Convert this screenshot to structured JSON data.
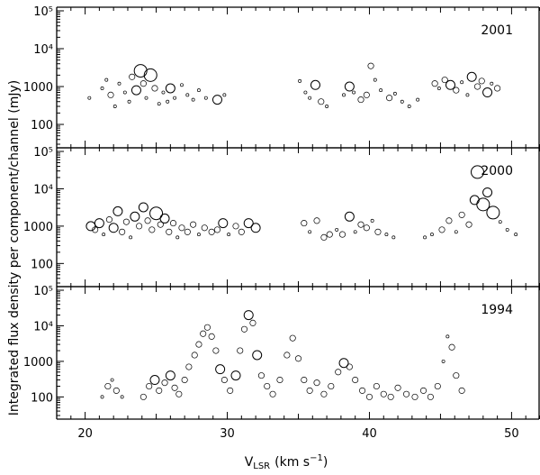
{
  "chart_data": {
    "type": "scatter",
    "ylabel": "Integrated flux density per component/channel (mJy)",
    "xlabel_main": "V",
    "xlabel_sub": "LSR",
    "xlabel_units": "(km s",
    "xlabel_units_sup": "−1",
    "xlabel_units_close": ")",
    "x_ticks": [
      "20",
      "30",
      "40",
      "50"
    ],
    "xlim": [
      18,
      52
    ],
    "ylim": [
      30,
      100000
    ],
    "y_scale": "log",
    "y_ticks": [
      "100",
      "1000",
      "10⁴",
      "10⁵"
    ],
    "panels": [
      {
        "label": "2001",
        "points": [
          [
            20.3,
            500,
            1
          ],
          [
            21.2,
            900,
            1
          ],
          [
            21.5,
            1500,
            1
          ],
          [
            21.8,
            600,
            2
          ],
          [
            22.1,
            300,
            1
          ],
          [
            22.4,
            1200,
            1
          ],
          [
            22.8,
            700,
            1
          ],
          [
            23.1,
            400,
            1
          ],
          [
            23.3,
            1800,
            2
          ],
          [
            23.6,
            800,
            3
          ],
          [
            23.9,
            2600,
            4
          ],
          [
            24.1,
            1200,
            2
          ],
          [
            24.3,
            500,
            1
          ],
          [
            24.6,
            2000,
            4
          ],
          [
            24.9,
            900,
            2
          ],
          [
            25.2,
            350,
            1
          ],
          [
            25.5,
            700,
            1
          ],
          [
            25.8,
            400,
            1
          ],
          [
            26.0,
            900,
            3
          ],
          [
            26.3,
            500,
            1
          ],
          [
            26.8,
            1100,
            1
          ],
          [
            27.2,
            600,
            1
          ],
          [
            27.6,
            450,
            1
          ],
          [
            28.0,
            800,
            1
          ],
          [
            28.5,
            500,
            1
          ],
          [
            29.3,
            450,
            3
          ],
          [
            29.8,
            600,
            1
          ],
          [
            35.1,
            1400,
            1
          ],
          [
            35.5,
            700,
            1
          ],
          [
            35.8,
            500,
            1
          ],
          [
            36.2,
            1100,
            3
          ],
          [
            36.6,
            400,
            2
          ],
          [
            37.0,
            300,
            1
          ],
          [
            38.2,
            600,
            1
          ],
          [
            38.6,
            1000,
            3
          ],
          [
            38.9,
            700,
            1
          ],
          [
            39.4,
            450,
            2
          ],
          [
            39.8,
            600,
            2
          ],
          [
            40.1,
            3500,
            2
          ],
          [
            40.4,
            1500,
            1
          ],
          [
            40.8,
            800,
            1
          ],
          [
            41.4,
            500,
            2
          ],
          [
            41.8,
            650,
            1
          ],
          [
            42.3,
            400,
            1
          ],
          [
            42.8,
            300,
            1
          ],
          [
            43.4,
            450,
            1
          ],
          [
            44.6,
            1200,
            2
          ],
          [
            44.9,
            900,
            1
          ],
          [
            45.3,
            1500,
            2
          ],
          [
            45.7,
            1100,
            3
          ],
          [
            46.1,
            800,
            2
          ],
          [
            46.5,
            1300,
            1
          ],
          [
            46.9,
            600,
            1
          ],
          [
            47.2,
            1800,
            3
          ],
          [
            47.6,
            1000,
            2
          ],
          [
            47.9,
            1400,
            2
          ],
          [
            48.3,
            700,
            3
          ],
          [
            48.6,
            1200,
            1
          ],
          [
            49.0,
            900,
            2
          ]
        ]
      },
      {
        "label": "2000",
        "points": [
          [
            20.4,
            1000,
            3
          ],
          [
            20.7,
            800,
            2
          ],
          [
            21.0,
            1200,
            3
          ],
          [
            21.3,
            600,
            1
          ],
          [
            21.7,
            1500,
            2
          ],
          [
            22.0,
            900,
            3
          ],
          [
            22.3,
            2500,
            3
          ],
          [
            22.6,
            700,
            2
          ],
          [
            22.9,
            1300,
            2
          ],
          [
            23.2,
            500,
            1
          ],
          [
            23.5,
            1800,
            3
          ],
          [
            23.8,
            1000,
            2
          ],
          [
            24.1,
            3200,
            3
          ],
          [
            24.4,
            1400,
            2
          ],
          [
            24.7,
            800,
            2
          ],
          [
            25.0,
            2200,
            4
          ],
          [
            25.3,
            1100,
            2
          ],
          [
            25.6,
            1600,
            3
          ],
          [
            25.9,
            700,
            2
          ],
          [
            26.2,
            1200,
            2
          ],
          [
            26.5,
            500,
            1
          ],
          [
            26.8,
            900,
            2
          ],
          [
            27.2,
            700,
            2
          ],
          [
            27.6,
            1100,
            2
          ],
          [
            28.0,
            600,
            1
          ],
          [
            28.4,
            900,
            2
          ],
          [
            28.9,
            700,
            2
          ],
          [
            29.3,
            800,
            2
          ],
          [
            29.7,
            1200,
            3
          ],
          [
            30.1,
            600,
            1
          ],
          [
            30.6,
            1000,
            2
          ],
          [
            31.0,
            700,
            2
          ],
          [
            31.5,
            1200,
            3
          ],
          [
            32.0,
            900,
            3
          ],
          [
            35.4,
            1200,
            2
          ],
          [
            35.8,
            700,
            1
          ],
          [
            36.3,
            1400,
            2
          ],
          [
            36.8,
            500,
            2
          ],
          [
            37.2,
            600,
            2
          ],
          [
            37.7,
            800,
            1
          ],
          [
            38.1,
            600,
            2
          ],
          [
            38.6,
            1800,
            3
          ],
          [
            39.0,
            700,
            1
          ],
          [
            39.4,
            1100,
            2
          ],
          [
            39.8,
            900,
            2
          ],
          [
            40.2,
            1400,
            1
          ],
          [
            40.6,
            700,
            2
          ],
          [
            41.2,
            600,
            1
          ],
          [
            41.7,
            500,
            1
          ],
          [
            43.9,
            500,
            1
          ],
          [
            44.4,
            600,
            1
          ],
          [
            45.1,
            800,
            2
          ],
          [
            45.6,
            1400,
            2
          ],
          [
            46.1,
            700,
            1
          ],
          [
            46.5,
            2000,
            2
          ],
          [
            47.0,
            1100,
            2
          ],
          [
            47.4,
            5000,
            3
          ],
          [
            47.6,
            28000,
            4
          ],
          [
            48.0,
            3800,
            4
          ],
          [
            48.3,
            8000,
            3
          ],
          [
            48.7,
            2300,
            4
          ],
          [
            49.2,
            1300,
            1
          ],
          [
            49.7,
            800,
            1
          ],
          [
            50.3,
            600,
            1
          ]
        ]
      },
      {
        "label": "1994",
        "points": [
          [
            21.2,
            100,
            1
          ],
          [
            21.6,
            200,
            2
          ],
          [
            21.9,
            300,
            1
          ],
          [
            22.2,
            150,
            2
          ],
          [
            22.6,
            100,
            1
          ],
          [
            24.1,
            100,
            2
          ],
          [
            24.5,
            200,
            2
          ],
          [
            24.9,
            300,
            3
          ],
          [
            25.2,
            150,
            2
          ],
          [
            25.6,
            250,
            2
          ],
          [
            26.0,
            400,
            3
          ],
          [
            26.3,
            180,
            2
          ],
          [
            26.6,
            120,
            2
          ],
          [
            27.0,
            300,
            2
          ],
          [
            27.3,
            700,
            2
          ],
          [
            27.7,
            1500,
            2
          ],
          [
            28.0,
            3000,
            2
          ],
          [
            28.3,
            6000,
            2
          ],
          [
            28.6,
            9000,
            2
          ],
          [
            28.9,
            5000,
            2
          ],
          [
            29.2,
            2000,
            2
          ],
          [
            29.5,
            600,
            3
          ],
          [
            29.8,
            300,
            2
          ],
          [
            30.2,
            150,
            2
          ],
          [
            30.6,
            400,
            3
          ],
          [
            30.9,
            2000,
            2
          ],
          [
            31.2,
            8000,
            2
          ],
          [
            31.5,
            20000,
            3
          ],
          [
            31.8,
            12000,
            2
          ],
          [
            32.1,
            1500,
            3
          ],
          [
            32.4,
            400,
            2
          ],
          [
            32.8,
            200,
            2
          ],
          [
            33.2,
            120,
            2
          ],
          [
            33.7,
            300,
            2
          ],
          [
            34.2,
            1500,
            2
          ],
          [
            34.6,
            4500,
            2
          ],
          [
            35.0,
            1200,
            2
          ],
          [
            35.4,
            300,
            2
          ],
          [
            35.8,
            150,
            2
          ],
          [
            36.3,
            250,
            2
          ],
          [
            36.8,
            120,
            2
          ],
          [
            37.3,
            200,
            2
          ],
          [
            37.8,
            500,
            2
          ],
          [
            38.2,
            900,
            3
          ],
          [
            38.6,
            700,
            2
          ],
          [
            39.0,
            300,
            2
          ],
          [
            39.5,
            150,
            2
          ],
          [
            40.0,
            100,
            2
          ],
          [
            40.5,
            200,
            2
          ],
          [
            41.0,
            120,
            2
          ],
          [
            41.5,
            100,
            2
          ],
          [
            42.0,
            180,
            2
          ],
          [
            42.6,
            120,
            2
          ],
          [
            43.2,
            100,
            2
          ],
          [
            43.8,
            150,
            2
          ],
          [
            44.3,
            100,
            2
          ],
          [
            44.8,
            200,
            2
          ],
          [
            45.2,
            1000,
            1
          ],
          [
            45.5,
            5000,
            1
          ],
          [
            45.8,
            2500,
            2
          ],
          [
            46.1,
            400,
            2
          ],
          [
            46.5,
            150,
            2
          ]
        ]
      }
    ]
  }
}
